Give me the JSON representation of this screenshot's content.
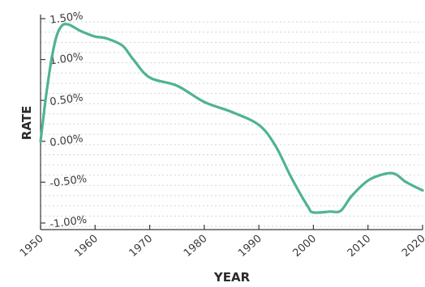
{
  "chart_data": {
    "type": "line",
    "xlabel": "YEAR",
    "ylabel": "RATE",
    "xlim": [
      1950,
      2020
    ],
    "ylim": [
      -1.08,
      1.55
    ],
    "grid": true,
    "line_color": "#4fb393",
    "x_ticks": [
      1950,
      1960,
      1970,
      1980,
      1990,
      2000,
      2010,
      2020
    ],
    "x_tick_labels": [
      "1950",
      "1960",
      "1970",
      "1980",
      "1990",
      "2000",
      "2010",
      "2020"
    ],
    "y_ticks": [
      1.5,
      1.0,
      0.5,
      0.0,
      -0.5,
      -1.0
    ],
    "y_tick_labels": [
      "1.50%",
      "1.00%",
      "0.50%",
      "0.00%",
      "-0.50%",
      "-1.00%"
    ],
    "series": [
      {
        "x": [
          1950,
          1951,
          1952,
          1953,
          1954,
          1955,
          1956,
          1957,
          1958,
          1960,
          1962,
          1965,
          1967,
          1970,
          1975,
          1980,
          1985,
          1990,
          1993,
          1996,
          1999,
          2000,
          2003,
          2005,
          2007,
          2010,
          2013,
          2015,
          2017,
          2020
        ],
        "values": [
          0.0,
          0.55,
          1.0,
          1.3,
          1.42,
          1.43,
          1.4,
          1.36,
          1.33,
          1.28,
          1.26,
          1.17,
          1.0,
          0.78,
          0.68,
          0.48,
          0.36,
          0.2,
          -0.05,
          -0.45,
          -0.8,
          -0.87,
          -0.86,
          -0.85,
          -0.67,
          -0.48,
          -0.4,
          -0.4,
          -0.5,
          -0.6
        ]
      }
    ]
  }
}
